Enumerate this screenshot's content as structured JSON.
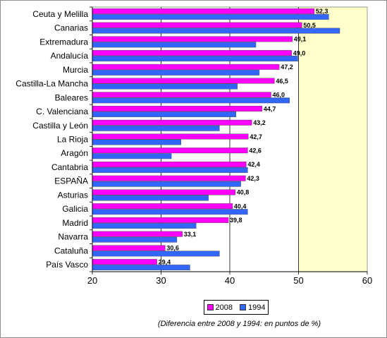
{
  "chart_data": {
    "type": "bar",
    "orientation": "horizontal",
    "categories": [
      "Ceuta y Melilla",
      "Canarias",
      "Extremadura",
      "Andalucía",
      "Murcia",
      "Castilla-La Mancha",
      "Baleares",
      "C. Valenciana",
      "Castilla y León",
      "La Rioja",
      "Aragón",
      "Cantabria",
      "ESPAÑA",
      "Asturias",
      "Galicia",
      "Madrid",
      "Navarra",
      "Cataluña",
      "País Vasco"
    ],
    "series": [
      {
        "name": "2008",
        "color": "#ff00ff",
        "values": [
          52.3,
          50.5,
          49.1,
          49.0,
          47.2,
          46.5,
          46.0,
          44.7,
          43.2,
          42.7,
          42.6,
          42.4,
          42.3,
          40.8,
          40.4,
          39.8,
          33.1,
          30.6,
          29.4
        ],
        "labels": [
          "52,3",
          "50,5",
          "49,1",
          "49,0",
          "47,2",
          "46,5",
          "46,0",
          "44,7",
          "43,2",
          "42,7",
          "42,6",
          "42,4",
          "42,3",
          "40,8",
          "40,4",
          "39,8",
          "33,1",
          "30,6",
          "29,4"
        ]
      },
      {
        "name": "1994",
        "color": "#3366ff",
        "values": [
          54.4,
          56.0,
          43.8,
          49.9,
          44.3,
          41.1,
          48.7,
          40.9,
          38.5,
          32.9,
          31.5,
          42.6,
          41.6,
          36.9,
          42.6,
          35.1,
          32.3,
          38.5,
          34.2
        ]
      }
    ],
    "xlim": [
      20,
      60
    ],
    "xticks": [
      "20",
      "30",
      "40",
      "50",
      "60"
    ],
    "legend_position": "bottom",
    "note": "(Diferencia entre 2008 y 1994: en puntos de %)",
    "colors": {
      "plot_background_left": "#ffffff",
      "plot_background_right": "#ffffcc",
      "gridline": "#000000"
    }
  }
}
